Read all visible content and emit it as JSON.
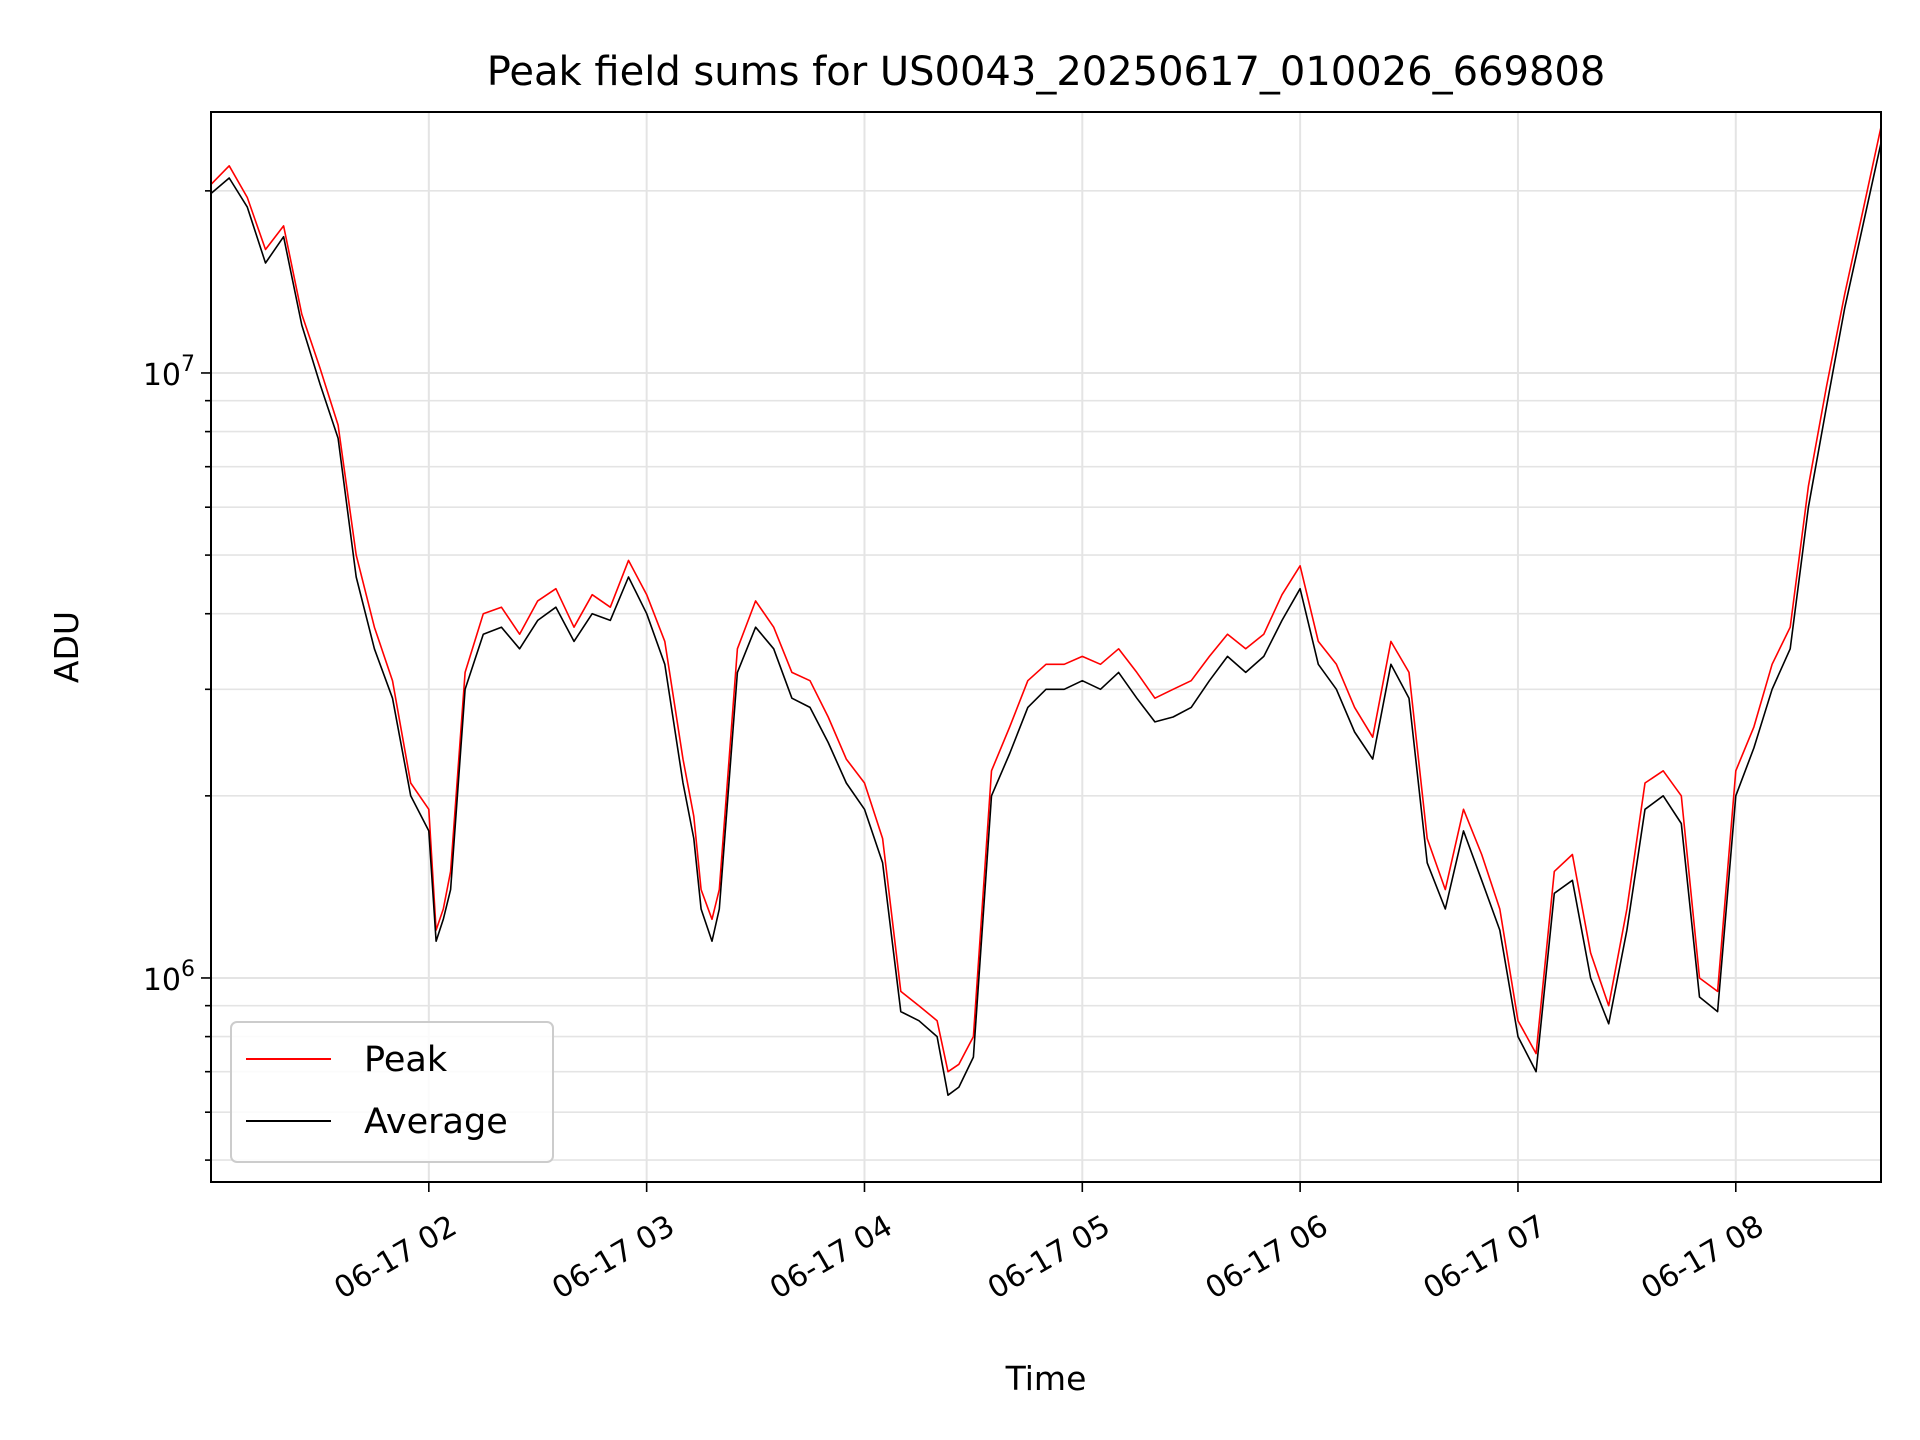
{
  "chart_data": {
    "type": "line",
    "title": "Peak field sums for US0043_20250617_010026_669808",
    "xlabel": "Time",
    "ylabel": "ADU",
    "y_scale": "log",
    "xlim": [
      "06-17 01:00",
      "06-17 08:40"
    ],
    "ylim": [
      460000,
      27000000
    ],
    "x_ticks": [
      "06-17 02",
      "06-17 03",
      "06-17 04",
      "06-17 05",
      "06-17 06",
      "06-17 07",
      "06-17 08"
    ],
    "y_ticks": [
      {
        "label": "10",
        "exp": "6"
      },
      {
        "label": "10",
        "exp": "7"
      }
    ],
    "grid": true,
    "legend_position": "lower-left",
    "x": [
      "01:00",
      "01:05",
      "01:10",
      "01:15",
      "01:20",
      "01:25",
      "01:30",
      "01:35",
      "01:40",
      "01:45",
      "01:50",
      "01:55",
      "02:00",
      "02:02",
      "02:04",
      "02:06",
      "02:10",
      "02:15",
      "02:20",
      "02:25",
      "02:30",
      "02:35",
      "02:40",
      "02:45",
      "02:50",
      "02:55",
      "03:00",
      "03:05",
      "03:10",
      "03:13",
      "03:15",
      "03:18",
      "03:20",
      "03:25",
      "03:30",
      "03:35",
      "03:40",
      "03:45",
      "03:50",
      "03:55",
      "04:00",
      "04:05",
      "04:10",
      "04:15",
      "04:20",
      "04:23",
      "04:26",
      "04:30",
      "04:35",
      "04:40",
      "04:45",
      "04:50",
      "04:55",
      "05:00",
      "05:05",
      "05:10",
      "05:15",
      "05:20",
      "05:25",
      "05:30",
      "05:35",
      "05:40",
      "05:45",
      "05:50",
      "05:55",
      "06:00",
      "06:05",
      "06:10",
      "06:15",
      "06:20",
      "06:25",
      "06:30",
      "06:35",
      "06:40",
      "06:45",
      "06:50",
      "06:55",
      "07:00",
      "07:05",
      "07:10",
      "07:15",
      "07:20",
      "07:25",
      "07:30",
      "07:35",
      "07:40",
      "07:45",
      "07:50",
      "07:55",
      "08:00",
      "08:05",
      "08:10",
      "08:15",
      "08:20",
      "08:25",
      "08:30",
      "08:35",
      "08:40"
    ],
    "series": [
      {
        "name": "Peak",
        "color": "#ff0000",
        "values": [
          20500000,
          22000000,
          19500000,
          16000000,
          17500000,
          12500000,
          10200000,
          8200000,
          5000000,
          3800000,
          3100000,
          2100000,
          1900000,
          1200000,
          1300000,
          1500000,
          3200000,
          4000000,
          4100000,
          3700000,
          4200000,
          4400000,
          3800000,
          4300000,
          4100000,
          4900000,
          4300000,
          3600000,
          2300000,
          1850000,
          1400000,
          1250000,
          1400000,
          3500000,
          4200000,
          3800000,
          3200000,
          3100000,
          2700000,
          2300000,
          2100000,
          1700000,
          950000,
          900000,
          850000,
          700000,
          720000,
          800000,
          2200000,
          2600000,
          3100000,
          3300000,
          3300000,
          3400000,
          3300000,
          3500000,
          3200000,
          2900000,
          3000000,
          3100000,
          3400000,
          3700000,
          3500000,
          3700000,
          4300000,
          4800000,
          3600000,
          3300000,
          2800000,
          2500000,
          3600000,
          3200000,
          1700000,
          1400000,
          1900000,
          1600000,
          1300000,
          850000,
          750000,
          1500000,
          1600000,
          1100000,
          900000,
          1300000,
          2100000,
          2200000,
          2000000,
          1000000,
          950000,
          2200000,
          2600000,
          3300000,
          3800000,
          6500000,
          9500000,
          13500000,
          18500000,
          25500000
        ]
      },
      {
        "name": "Average",
        "color": "#000000",
        "values": [
          19800000,
          21000000,
          18800000,
          15200000,
          16800000,
          12000000,
          9600000,
          7800000,
          4600000,
          3500000,
          2900000,
          2000000,
          1750000,
          1150000,
          1250000,
          1400000,
          3000000,
          3700000,
          3800000,
          3500000,
          3900000,
          4100000,
          3600000,
          4000000,
          3900000,
          4600000,
          4000000,
          3300000,
          2100000,
          1700000,
          1300000,
          1150000,
          1300000,
          3200000,
          3800000,
          3500000,
          2900000,
          2800000,
          2450000,
          2100000,
          1900000,
          1550000,
          880000,
          850000,
          800000,
          640000,
          660000,
          740000,
          2000000,
          2350000,
          2800000,
          3000000,
          3000000,
          3100000,
          3000000,
          3200000,
          2900000,
          2650000,
          2700000,
          2800000,
          3100000,
          3400000,
          3200000,
          3400000,
          3900000,
          4400000,
          3300000,
          3000000,
          2550000,
          2300000,
          3300000,
          2900000,
          1550000,
          1300000,
          1750000,
          1450000,
          1200000,
          800000,
          700000,
          1380000,
          1450000,
          1000000,
          840000,
          1200000,
          1900000,
          2000000,
          1800000,
          930000,
          880000,
          2000000,
          2400000,
          3000000,
          3500000,
          6000000,
          8800000,
          12800000,
          17500000,
          24000000
        ]
      }
    ]
  }
}
